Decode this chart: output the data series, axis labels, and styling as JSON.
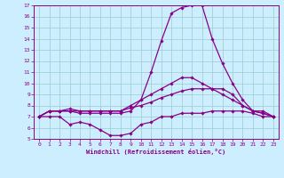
{
  "xlabel": "Windchill (Refroidissement éolien,°C)",
  "xlim": [
    -0.5,
    23.5
  ],
  "ylim": [
    5,
    17
  ],
  "yticks": [
    5,
    6,
    7,
    8,
    9,
    10,
    11,
    12,
    13,
    14,
    15,
    16,
    17
  ],
  "xticks": [
    0,
    1,
    2,
    3,
    4,
    5,
    6,
    7,
    8,
    9,
    10,
    11,
    12,
    13,
    14,
    15,
    16,
    17,
    18,
    19,
    20,
    21,
    22,
    23
  ],
  "bg_color": "#cceeff",
  "line_color": "#880088",
  "grid_color": "#99cccc",
  "lines": {
    "line1": {
      "x": [
        0,
        1,
        2,
        3,
        4,
        5,
        6,
        7,
        8,
        9,
        10,
        11,
        12,
        13,
        14,
        15,
        16,
        17,
        18,
        19,
        20,
        21,
        22,
        23
      ],
      "y": [
        7.0,
        7.5,
        7.5,
        7.7,
        7.5,
        7.5,
        7.5,
        7.5,
        7.5,
        8.0,
        8.5,
        9.0,
        9.5,
        10.0,
        10.5,
        10.5,
        10.0,
        9.5,
        9.0,
        8.5,
        8.0,
        7.5,
        7.3,
        7.0
      ]
    },
    "line2": {
      "x": [
        0,
        1,
        2,
        3,
        4,
        5,
        6,
        7,
        8,
        9,
        10,
        11,
        12,
        13,
        14,
        15,
        16,
        17,
        18,
        19,
        20,
        21,
        22,
        23
      ],
      "y": [
        7.0,
        7.5,
        7.5,
        7.5,
        7.5,
        7.5,
        7.5,
        7.5,
        7.5,
        7.8,
        8.0,
        8.3,
        8.7,
        9.0,
        9.3,
        9.5,
        9.5,
        9.5,
        9.5,
        9.0,
        8.0,
        7.5,
        7.5,
        7.0
      ]
    },
    "line3": {
      "x": [
        0,
        1,
        2,
        3,
        4,
        5,
        6,
        7,
        8,
        9,
        10,
        11,
        12,
        13,
        14,
        15,
        16,
        17,
        18,
        19,
        20,
        21,
        22,
        23
      ],
      "y": [
        7.0,
        7.0,
        7.0,
        6.3,
        6.5,
        6.3,
        5.8,
        5.3,
        5.3,
        5.5,
        6.3,
        6.5,
        7.0,
        7.0,
        7.3,
        7.3,
        7.3,
        7.5,
        7.5,
        7.5,
        7.5,
        7.3,
        7.0,
        7.0
      ]
    },
    "line4": {
      "x": [
        0,
        1,
        2,
        3,
        4,
        5,
        6,
        7,
        8,
        9,
        10,
        11,
        12,
        13,
        14,
        15,
        16,
        17,
        18,
        19,
        20,
        21,
        22,
        23
      ],
      "y": [
        7.0,
        7.5,
        7.5,
        7.5,
        7.3,
        7.3,
        7.3,
        7.3,
        7.3,
        7.5,
        8.5,
        11.0,
        13.8,
        16.3,
        16.8,
        17.0,
        17.0,
        14.0,
        11.8,
        10.0,
        8.5,
        7.5,
        7.3,
        7.0
      ]
    }
  },
  "marker": "D",
  "markersize": 1.8,
  "linewidth": 0.9
}
